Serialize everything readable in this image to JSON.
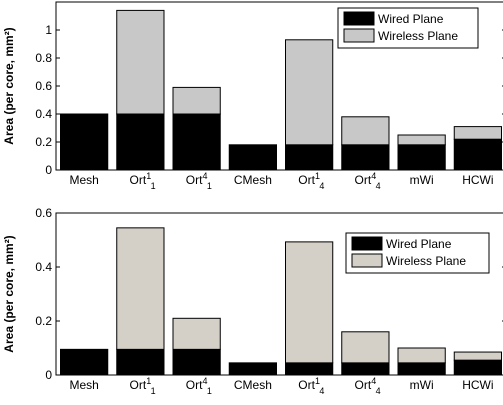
{
  "chart_data": [
    {
      "type": "bar",
      "stacked": true,
      "ylabel": "Area (per core, mm²)",
      "ylim": [
        0,
        1.2
      ],
      "yticks": [
        "0",
        "0.2",
        "0.4",
        "0.6",
        "0.8",
        "1"
      ],
      "categories": [
        {
          "base": "Mesh",
          "sup": "",
          "sub": ""
        },
        {
          "base": "Ort",
          "sup": "1",
          "sub": "1"
        },
        {
          "base": "Ort",
          "sup": "4",
          "sub": "1"
        },
        {
          "base": "CMesh",
          "sup": "",
          "sub": ""
        },
        {
          "base": "Ort",
          "sup": "1",
          "sub": "4"
        },
        {
          "base": "Ort",
          "sup": "4",
          "sub": "4"
        },
        {
          "base": "mWi",
          "sup": "",
          "sub": ""
        },
        {
          "base": "HCWi",
          "sup": "",
          "sub": ""
        }
      ],
      "series": [
        {
          "name": "Wired Plane",
          "color": "#000000",
          "values": [
            0.4,
            0.4,
            0.4,
            0.18,
            0.18,
            0.18,
            0.18,
            0.22
          ]
        },
        {
          "name": "Wireless Plane",
          "color": "#c8c8c8",
          "values": [
            0.0,
            0.74,
            0.19,
            0.0,
            0.75,
            0.2,
            0.07,
            0.09
          ]
        }
      ],
      "legend_position": "top-right",
      "grid": false
    },
    {
      "type": "bar",
      "stacked": true,
      "ylabel": "Area (per core, mm²)",
      "ylim": [
        0,
        0.6
      ],
      "yticks": [
        "0",
        "0.2",
        "0.4",
        "0.6"
      ],
      "categories": [
        {
          "base": "Mesh",
          "sup": "",
          "sub": ""
        },
        {
          "base": "Ort",
          "sup": "1",
          "sub": "1"
        },
        {
          "base": "Ort",
          "sup": "4",
          "sub": "1"
        },
        {
          "base": "CMesh",
          "sup": "",
          "sub": ""
        },
        {
          "base": "Ort",
          "sup": "1",
          "sub": "4"
        },
        {
          "base": "Ort",
          "sup": "4",
          "sub": "4"
        },
        {
          "base": "mWi",
          "sup": "",
          "sub": ""
        },
        {
          "base": "HCWi",
          "sup": "",
          "sub": ""
        }
      ],
      "series": [
        {
          "name": "Wired Plane",
          "color": "#000000",
          "values": [
            0.095,
            0.095,
            0.095,
            0.045,
            0.045,
            0.045,
            0.045,
            0.055
          ]
        },
        {
          "name": "Wireless Plane",
          "color": "#d4d0c8",
          "values": [
            0.0,
            0.45,
            0.115,
            0.0,
            0.448,
            0.115,
            0.055,
            0.03
          ]
        }
      ],
      "legend_position": "top-right",
      "grid": false
    }
  ]
}
